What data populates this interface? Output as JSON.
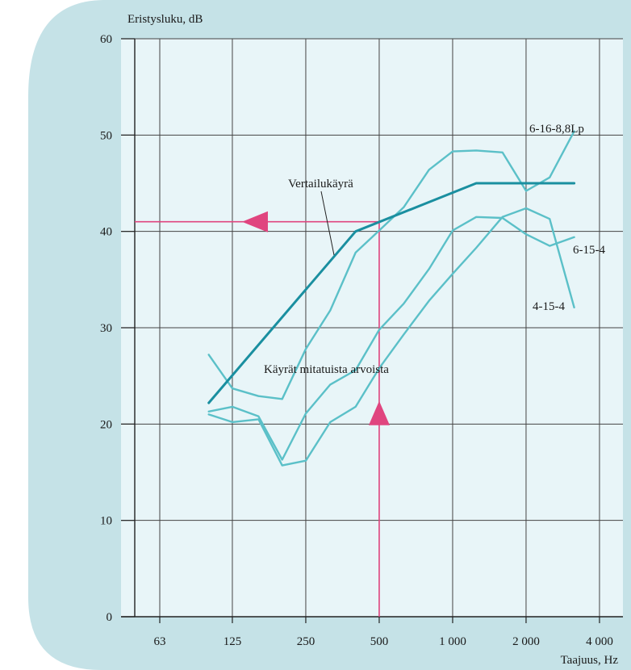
{
  "chart_data": {
    "type": "line",
    "title": "",
    "ylabel": "Eristysluku, dB",
    "xlabel": "Taajuus, Hz",
    "ylim": [
      0,
      60
    ],
    "x_scale": "log2",
    "x_ticks": [
      63,
      125,
      250,
      500,
      1000,
      2000,
      4000
    ],
    "x_tick_labels": [
      "63",
      "125",
      "250",
      "500",
      "1 000",
      "2 000",
      "4 000"
    ],
    "y_ticks": [
      0,
      10,
      20,
      30,
      40,
      50,
      60
    ],
    "y_tick_labels": [
      "0",
      "10",
      "20",
      "30",
      "40",
      "50",
      "60"
    ],
    "grid": true,
    "series": [
      {
        "name": "6-16-8,8Lp",
        "color": "#5bc0c8",
        "x": [
          100,
          125,
          160,
          200,
          250,
          315,
          400,
          500,
          630,
          800,
          1000,
          1250,
          1600,
          2000,
          2500,
          3150
        ],
        "y": [
          27.2,
          23.7,
          22.9,
          22.6,
          27.8,
          31.8,
          37.8,
          40.1,
          42.5,
          46.4,
          48.3,
          48.4,
          48.2,
          44.2,
          45.6,
          50.4
        ]
      },
      {
        "name": "6-15-4",
        "color": "#5bc0c8",
        "x": [
          100,
          125,
          160,
          200,
          250,
          315,
          400,
          500,
          630,
          800,
          1000,
          1250,
          1600,
          2000,
          2500,
          3150
        ],
        "y": [
          21.3,
          21.8,
          20.8,
          16.3,
          21.1,
          24.1,
          25.6,
          29.8,
          32.5,
          36.1,
          40.1,
          41.5,
          41.4,
          39.7,
          38.5,
          39.4
        ]
      },
      {
        "name": "4-15-4",
        "color": "#5bc0c8",
        "x": [
          100,
          125,
          160,
          200,
          250,
          315,
          400,
          500,
          630,
          800,
          1000,
          1250,
          1600,
          2000,
          2500,
          3150
        ],
        "y": [
          21.0,
          20.2,
          20.5,
          15.7,
          16.2,
          20.2,
          21.8,
          25.8,
          29.3,
          32.8,
          35.6,
          38.3,
          41.5,
          42.4,
          41.3,
          32.1
        ]
      },
      {
        "name": "Vertailukäyrä",
        "color": "#1a8fa0",
        "x": [
          100,
          400,
          1250,
          3150
        ],
        "y": [
          22.2,
          40.0,
          45.0,
          45.0
        ]
      }
    ],
    "reference_lines": {
      "color": "#e0457f",
      "x_value": 500,
      "y_value": 41
    },
    "annotations": {
      "reference_curve": "Vertailukäyrä",
      "measured_curves": "Käyrät mitatuista arvoista",
      "label_6_16": "6-16-8,8Lp",
      "label_6_15": "6-15-4",
      "label_4_15": "4-15-4"
    },
    "colors": {
      "backdrop": "#c5e2e7",
      "plot_background": "#e8f5f8",
      "grid": "#444444",
      "measured": "#5bc0c8",
      "reference": "#1a8fa0",
      "marker": "#e0457f"
    }
  }
}
